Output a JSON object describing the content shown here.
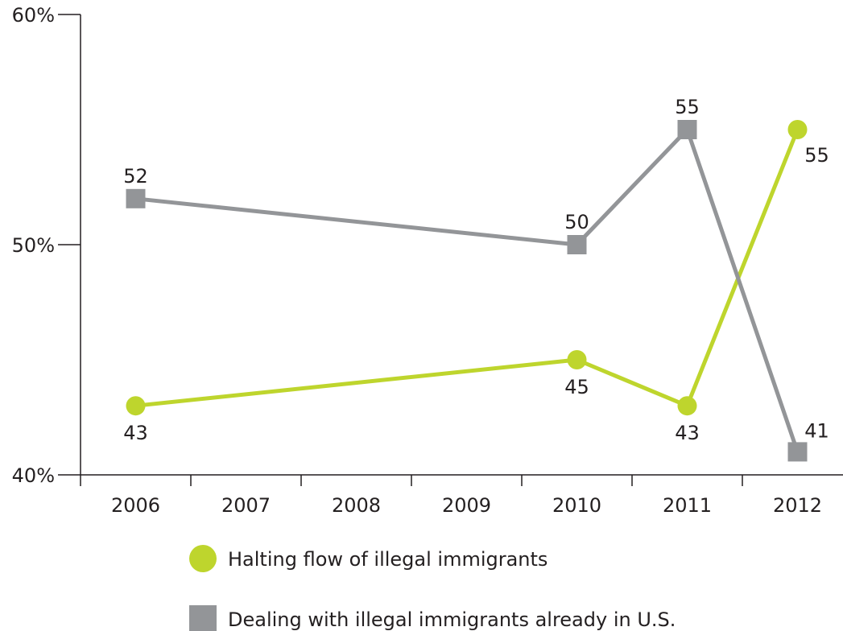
{
  "chart_data": {
    "type": "line",
    "categories": [
      "2006",
      "2007",
      "2008",
      "2009",
      "2010",
      "2011",
      "2012"
    ],
    "y_ticks": [
      "40%",
      "50%",
      "60%"
    ],
    "ylim": [
      40,
      60
    ],
    "series": [
      {
        "name": "Halting flow of illegal immigrants",
        "marker": "circle",
        "color": "#bed52d",
        "points": [
          {
            "x": "2006",
            "y": 43,
            "label": "43"
          },
          {
            "x": "2010",
            "y": 45,
            "label": "45"
          },
          {
            "x": "2011",
            "y": 43,
            "label": "43"
          },
          {
            "x": "2012",
            "y": 55,
            "label": "55"
          }
        ]
      },
      {
        "name": "Dealing with illegal immigrants already in U.S.",
        "marker": "square",
        "color": "#939598",
        "points": [
          {
            "x": "2006",
            "y": 52,
            "label": "52"
          },
          {
            "x": "2010",
            "y": 50,
            "label": "50"
          },
          {
            "x": "2011",
            "y": 55,
            "label": "55"
          },
          {
            "x": "2012",
            "y": 41,
            "label": "41"
          }
        ]
      }
    ],
    "grid": false,
    "legend_position": "bottom"
  }
}
